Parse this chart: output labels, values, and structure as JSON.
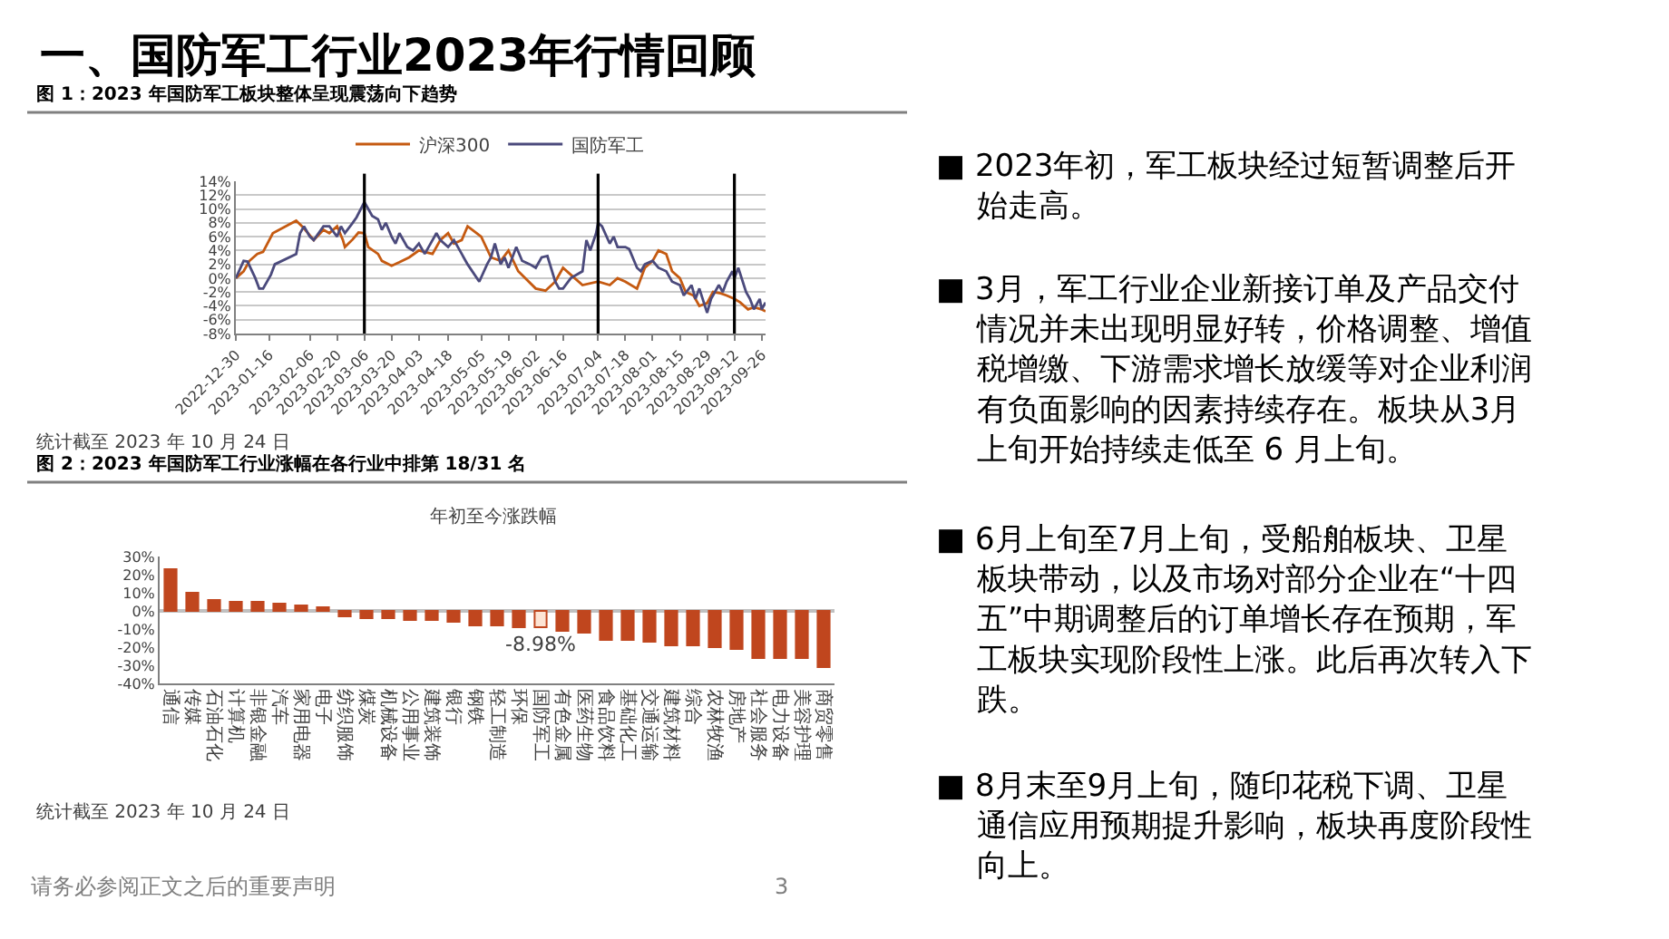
{
  "chart_data": [
    {
      "type": "line",
      "title": "图 1：2023 年国防军工板块整体呈现震荡向下趋势",
      "xlim": [
        "2022-12-30",
        "2023-09-28"
      ],
      "xticks": [
        "2022-12-30",
        "2023-01-16",
        "2023-02-06",
        "2023-02-20",
        "2023-03-06",
        "2023-03-20",
        "2023-04-03",
        "2023-04-18",
        "2023-05-05",
        "2023-05-19",
        "2023-06-02",
        "2023-06-16",
        "2023-07-04",
        "2023-07-18",
        "2023-08-01",
        "2023-08-15",
        "2023-08-29",
        "2023-09-12",
        "2023-09-26"
      ],
      "ylim": [
        -8,
        14
      ],
      "yticks": [
        {
          "value": -8,
          "label": "-8%"
        },
        {
          "value": -6,
          "label": "-6%"
        },
        {
          "value": -4,
          "label": "-4%"
        },
        {
          "value": -2,
          "label": "-2%"
        },
        {
          "value": 0,
          "label": "0%"
        },
        {
          "value": 2,
          "label": "2%"
        },
        {
          "value": 4,
          "label": "4%"
        },
        {
          "value": 6,
          "label": "6%"
        },
        {
          "value": 8,
          "label": "8%"
        },
        {
          "value": 10,
          "label": "10%"
        },
        {
          "value": 12,
          "label": "12%"
        },
        {
          "value": 14,
          "label": "14%"
        }
      ],
      "grid": "y",
      "legend": "top",
      "marker": "none",
      "line_style": "solid",
      "ref_lines": [
        {
          "axis": "x",
          "value": "2023-03-06",
          "color": "#000000"
        },
        {
          "axis": "x",
          "value": "2023-07-04",
          "color": "#000000"
        },
        {
          "axis": "x",
          "value": "2023-09-12",
          "color": "#000000"
        }
      ],
      "series": [
        {
          "name": "沪深300",
          "color": "#c55a11",
          "x": [
            "2022-12-30",
            "2023-01-03",
            "2023-01-06",
            "2023-01-10",
            "2023-01-13",
            "2023-01-18",
            "2023-01-20",
            "2023-01-30",
            "2023-02-02",
            "2023-02-06",
            "2023-02-08",
            "2023-02-13",
            "2023-02-16",
            "2023-02-20",
            "2023-02-23",
            "2023-02-24",
            "2023-02-28",
            "2023-03-03",
            "2023-03-06",
            "2023-03-08",
            "2023-03-13",
            "2023-03-15",
            "2023-03-20",
            "2023-03-24",
            "2023-03-29",
            "2023-04-03",
            "2023-04-10",
            "2023-04-14",
            "2023-04-18",
            "2023-04-21",
            "2023-04-25",
            "2023-04-28",
            "2023-05-05",
            "2023-05-10",
            "2023-05-15",
            "2023-05-19",
            "2023-05-24",
            "2023-06-02",
            "2023-06-07",
            "2023-06-12",
            "2023-06-16",
            "2023-06-20",
            "2023-06-26",
            "2023-07-04",
            "2023-07-10",
            "2023-07-14",
            "2023-07-18",
            "2023-07-24",
            "2023-07-28",
            "2023-08-01",
            "2023-08-04",
            "2023-08-08",
            "2023-08-11",
            "2023-08-15",
            "2023-08-18",
            "2023-08-22",
            "2023-08-25",
            "2023-08-29",
            "2023-09-01",
            "2023-09-05",
            "2023-09-08",
            "2023-09-12",
            "2023-09-15",
            "2023-09-19",
            "2023-09-22",
            "2023-09-26",
            "2023-09-28"
          ],
          "values": [
            0,
            1,
            2.5,
            3.5,
            3.8,
            6.5,
            6.8,
            8.3,
            7.5,
            6.2,
            5.5,
            7,
            6.5,
            7.5,
            5.5,
            4.5,
            5.6,
            6.6,
            6.5,
            4.5,
            3.5,
            2.5,
            1.8,
            2.3,
            3,
            4,
            3.5,
            5.5,
            6.5,
            5,
            5.5,
            7.5,
            6,
            3,
            2.5,
            4,
            1,
            -1.5,
            -1.8,
            -0.5,
            1.5,
            0.5,
            -1,
            -0.5,
            -1,
            0,
            -0.5,
            -1.5,
            1.5,
            2.5,
            4,
            3.5,
            1,
            0,
            -2,
            -2.5,
            -4,
            -3.6,
            -2,
            -2.2,
            -2.5,
            -3,
            -3.5,
            -4.5,
            -4.2,
            -4.5,
            -4.8
          ]
        },
        {
          "name": "国防军工",
          "color": "#4b4a7c",
          "x": [
            "2022-12-30",
            "2023-01-03",
            "2023-01-05",
            "2023-01-09",
            "2023-01-11",
            "2023-01-13",
            "2023-01-17",
            "2023-01-19",
            "2023-01-30",
            "2023-02-01",
            "2023-02-03",
            "2023-02-06",
            "2023-02-08",
            "2023-02-13",
            "2023-02-16",
            "2023-02-20",
            "2023-02-22",
            "2023-02-24",
            "2023-02-28",
            "2023-03-02",
            "2023-03-06",
            "2023-03-08",
            "2023-03-10",
            "2023-03-13",
            "2023-03-15",
            "2023-03-17",
            "2023-03-20",
            "2023-03-22",
            "2023-03-24",
            "2023-03-28",
            "2023-03-31",
            "2023-04-03",
            "2023-04-06",
            "2023-04-10",
            "2023-04-12",
            "2023-04-14",
            "2023-04-18",
            "2023-04-21",
            "2023-04-25",
            "2023-04-28",
            "2023-05-04",
            "2023-05-08",
            "2023-05-10",
            "2023-05-12",
            "2023-05-15",
            "2023-05-17",
            "2023-05-19",
            "2023-05-23",
            "2023-05-26",
            "2023-05-30",
            "2023-06-02",
            "2023-06-05",
            "2023-06-08",
            "2023-06-12",
            "2023-06-14",
            "2023-06-16",
            "2023-06-20",
            "2023-06-26",
            "2023-06-28",
            "2023-06-30",
            "2023-07-03",
            "2023-07-04",
            "2023-07-06",
            "2023-07-10",
            "2023-07-12",
            "2023-07-14",
            "2023-07-18",
            "2023-07-20",
            "2023-07-24",
            "2023-07-26",
            "2023-07-28",
            "2023-08-01",
            "2023-08-04",
            "2023-08-08",
            "2023-08-11",
            "2023-08-15",
            "2023-08-17",
            "2023-08-21",
            "2023-08-23",
            "2023-08-25",
            "2023-08-29",
            "2023-08-31",
            "2023-09-04",
            "2023-09-06",
            "2023-09-08",
            "2023-09-11",
            "2023-09-12",
            "2023-09-14",
            "2023-09-18",
            "2023-09-20",
            "2023-09-22",
            "2023-09-25",
            "2023-09-26",
            "2023-09-28"
          ],
          "values": [
            0,
            2.5,
            2.4,
            0,
            -1.5,
            -1.5,
            0.5,
            2,
            3.5,
            6.5,
            7.5,
            6,
            5.5,
            7.5,
            7.5,
            6,
            7.5,
            6.5,
            8,
            8.8,
            11,
            10,
            9,
            8.5,
            7,
            8,
            6,
            5,
            6.5,
            4.5,
            4,
            5,
            3.5,
            5.5,
            6.5,
            5.5,
            4.5,
            5.5,
            3.5,
            2,
            -0.5,
            2,
            3,
            5,
            2,
            3,
            1.5,
            4.5,
            2.5,
            2,
            1.5,
            3,
            3.2,
            -0.5,
            -1.5,
            -1.5,
            0,
            1,
            5.5,
            4,
            6.5,
            8,
            7.5,
            5,
            6,
            4.5,
            4.5,
            4.2,
            1.5,
            1,
            2,
            2.5,
            1.5,
            1,
            -0.5,
            -1,
            -2.5,
            -1,
            -3,
            -1.5,
            -5,
            -3,
            -1,
            -2,
            -0.5,
            1,
            0,
            1.5,
            -2,
            -3,
            -4.5,
            -3,
            -4.5,
            -3.5
          ]
        }
      ],
      "annotations": [
        "统计截至 2023 年 10 月 24 日"
      ]
    },
    {
      "type": "bar",
      "title": "图 2：2023 年国防军工行业涨幅在各行业中排第 18/31 名",
      "subtitle": "年初至今涨跌幅",
      "categories": [
        "通信",
        "传媒",
        "石油石化",
        "计算机",
        "非银金融",
        "汽车",
        "家用电器",
        "电子",
        "纺织服饰",
        "煤炭",
        "机械设备",
        "公用事业",
        "建筑装饰",
        "银行",
        "钢铁",
        "轻工制造",
        "环保",
        "国防军工",
        "有色金属",
        "医药生物",
        "食品饮料",
        "基础化工",
        "交通运输",
        "建筑材料",
        "综合",
        "农林牧渔",
        "房地产",
        "社会服务",
        "电力设备",
        "美容护理",
        "商贸零售"
      ],
      "values": [
        23,
        10,
        6,
        5,
        5,
        4,
        3,
        2,
        -3,
        -4,
        -4,
        -5,
        -5,
        -6,
        -8,
        -8,
        -9,
        -8.98,
        -11,
        -12,
        -16,
        -16,
        -17,
        -19,
        -19,
        -20,
        -21,
        -26,
        -26,
        -26,
        -31
      ],
      "color": "#c0461e",
      "colors": [
        "#c0461e",
        "#c0461e",
        "#c0461e",
        "#c0461e",
        "#c0461e",
        "#c0461e",
        "#c0461e",
        "#c0461e",
        "#c0461e",
        "#c0461e",
        "#c0461e",
        "#c0461e",
        "#c0461e",
        "#c0461e",
        "#c0461e",
        "#c0461e",
        "#c0461e",
        "#fde4d4",
        "#c0461e",
        "#c0461e",
        "#c0461e",
        "#c0461e",
        "#c0461e",
        "#c0461e",
        "#c0461e",
        "#c0461e",
        "#c0461e",
        "#c0461e",
        "#c0461e",
        "#c0461e",
        "#c0461e"
      ],
      "value_labels": [
        null,
        null,
        null,
        null,
        null,
        null,
        null,
        null,
        null,
        null,
        null,
        null,
        null,
        null,
        null,
        null,
        null,
        "-8.98%",
        null,
        null,
        null,
        null,
        null,
        null,
        null,
        null,
        null,
        null,
        null,
        null,
        null
      ],
      "ylim": [
        -40,
        30
      ],
      "yticks": [
        {
          "value": -40,
          "label": "-40%"
        },
        {
          "value": -30,
          "label": "-30%"
        },
        {
          "value": -20,
          "label": "-20%"
        },
        {
          "value": -10,
          "label": "-10%"
        },
        {
          "value": 0,
          "label": "0%"
        },
        {
          "value": 10,
          "label": "10%"
        },
        {
          "value": 20,
          "label": "20%"
        },
        {
          "value": 30,
          "label": "30%"
        }
      ],
      "annotations": [
        "统计截至 2023 年 10 月 24 日"
      ]
    },
    {
      "type": "other",
      "title": "一、国防军工行业2023年行情回顾",
      "annotations": [
        "■ 2023年初，军工板块经过短暂调整后开始走高。",
        "■ 3月，军工行业企业新接订单及产品交付情况并未出现明显好转，价格调整、增值税增缴、下游需求增长放缓等对企业利润有负面影响的因素持续存在。板块从3月上旬开始持续走低至 6 月上旬。",
        "■ 6月上旬至7月上旬，受船舶板块、卫星板块带动，以及市场对部分企业在“十四五”中期调整后的订单增长存在预期，军工板块实现阶段性上涨。此后再次转入下跌。",
        "■ 8月末至9月上旬，随印花税下调、卫星通信应用预期提升影响，板块再度阶段性向上。",
        "请务必参阅正文之后的重要声明",
        "3"
      ]
    }
  ]
}
